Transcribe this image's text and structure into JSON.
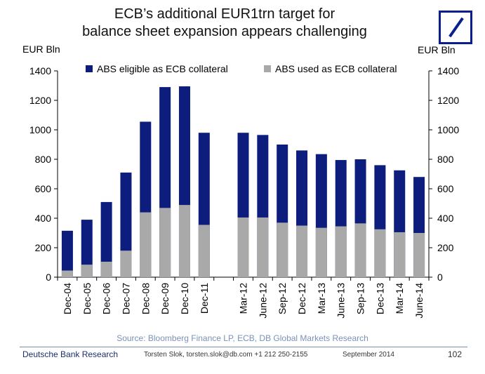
{
  "header": {
    "title_line1": "ECB’s additional EUR1trn target for",
    "title_line2": "balance sheet expansion appears challenging",
    "unit_left": "EUR Bln",
    "unit_right": "EUR Bln"
  },
  "colors": {
    "eligible": "#0d1d7e",
    "used": "#a9a9a9",
    "brand": "#0a1f8f"
  },
  "chart_data": {
    "type": "bar",
    "categories": [
      "Dec-04",
      "Dec-05",
      "Dec-06",
      "Dec-07",
      "Dec-08",
      "Dec-09",
      "Dec-10",
      "Dec-11",
      "",
      "Mar-12",
      "June-12",
      "Sep-12",
      "Dec-12",
      "Mar-13",
      "June-13",
      "Sep-13",
      "Dec-13",
      "Mar-14",
      "June-14"
    ],
    "series": [
      {
        "name": "ABS eligible as ECB collateral",
        "values": [
          315,
          390,
          510,
          710,
          1055,
          1290,
          1295,
          980,
          null,
          980,
          965,
          900,
          860,
          835,
          795,
          800,
          760,
          725,
          680
        ]
      },
      {
        "name": "ABS used as ECB collateral",
        "values": [
          45,
          85,
          105,
          180,
          440,
          470,
          490,
          355,
          null,
          405,
          405,
          370,
          350,
          335,
          345,
          365,
          325,
          305,
          300
        ]
      }
    ],
    "overlay": true,
    "ylim": [
      0,
      1400
    ],
    "yticks": [
      0,
      200,
      400,
      600,
      800,
      1000,
      1200,
      1400
    ],
    "dual_axis": true,
    "legend_position": "top",
    "grid": false
  },
  "footer": {
    "source": "Source: Bloomberg Finance LP, ECB, DB Global Markets Research",
    "org": "Deutsche Bank Research",
    "contact": "Torsten Slok, torsten.slok@db.com  +1 212 250-2155",
    "date": "September 2014",
    "page": "102"
  }
}
